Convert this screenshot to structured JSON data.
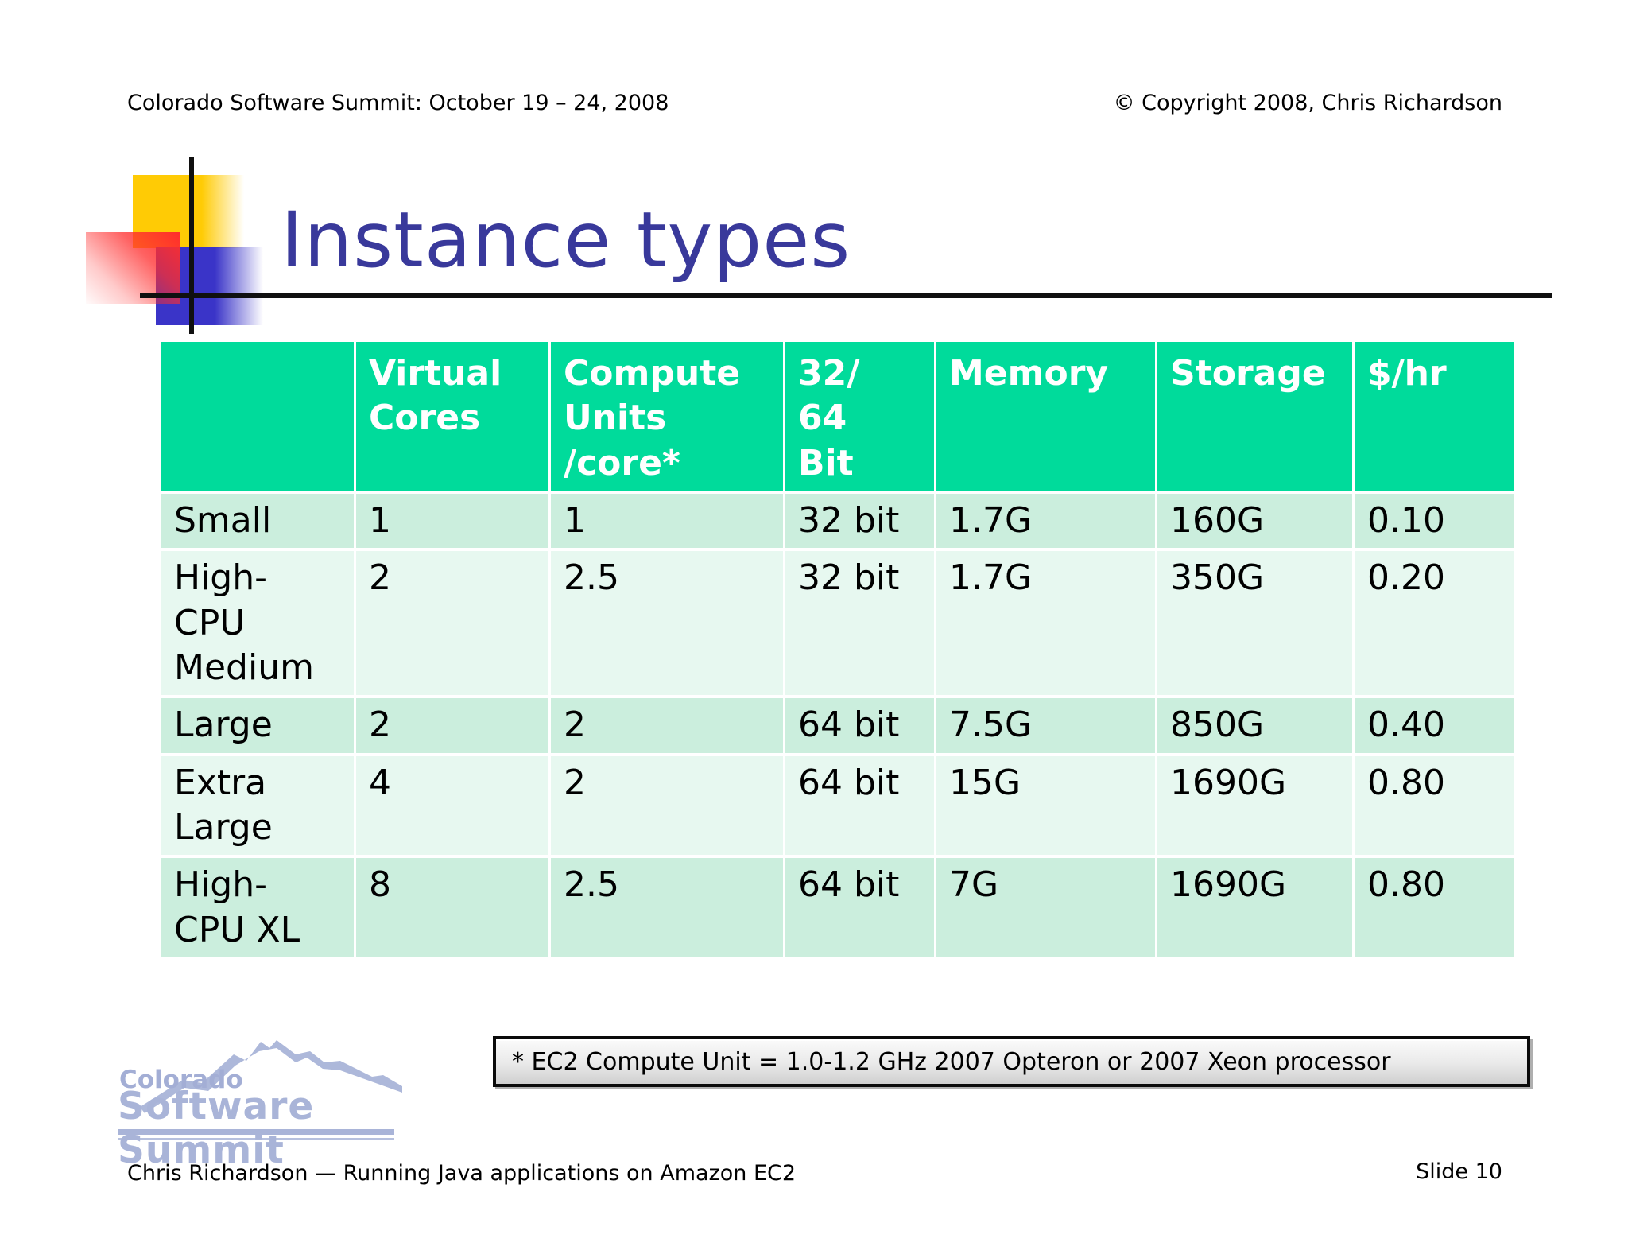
{
  "meta": {
    "top_left": "Colorado Software Summit:  October 19 – 24, 2008",
    "top_right": "© Copyright 2008, Chris Richardson",
    "bottom_left": "Chris Richardson  — Running Java applications on Amazon EC2",
    "bottom_right": "Slide 10"
  },
  "title": "Instance types",
  "table": {
    "columns": [
      "",
      "Virtual\nCores",
      "Compute\nUnits\n/core*",
      "32/\n64\nBit",
      "Memory",
      "Storage",
      "$/hr"
    ],
    "rows": [
      {
        "name": "Small",
        "cells": [
          "1",
          "1",
          "32 bit",
          "1.7G",
          "160G",
          "0.10"
        ]
      },
      {
        "name": "High-\nCPU\nMedium",
        "cells": [
          "2",
          "2.5",
          "32 bit",
          "1.7G",
          "350G",
          "0.20"
        ]
      },
      {
        "name": "Large",
        "cells": [
          "2",
          "2",
          "64 bit",
          "7.5G",
          "850G",
          "0.40"
        ]
      },
      {
        "name": "Extra\nLarge",
        "cells": [
          "4",
          "2",
          "64 bit",
          "15G",
          "1690G",
          "0.80"
        ]
      },
      {
        "name": "High-\nCPU XL",
        "cells": [
          "8",
          "2.5",
          "64 bit",
          "7G",
          "1690G",
          "0.80"
        ]
      }
    ]
  },
  "footnote": "* EC2 Compute Unit = 1.0-1.2 GHz 2007 Opteron or 2007 Xeon processor",
  "logo": {
    "line1": "Colorado",
    "line2": "Software Summit"
  },
  "colors": {
    "header_green": "#00db9b",
    "row_dark": "#cbeedd",
    "row_light": "#e7f8f0",
    "title_indigo": "#39399b",
    "logo_periwinkle": "#a9b4d8",
    "deco_yellow": "#ffcb05",
    "deco_red": "#ff2d2d",
    "deco_blue": "#3a34c8"
  }
}
